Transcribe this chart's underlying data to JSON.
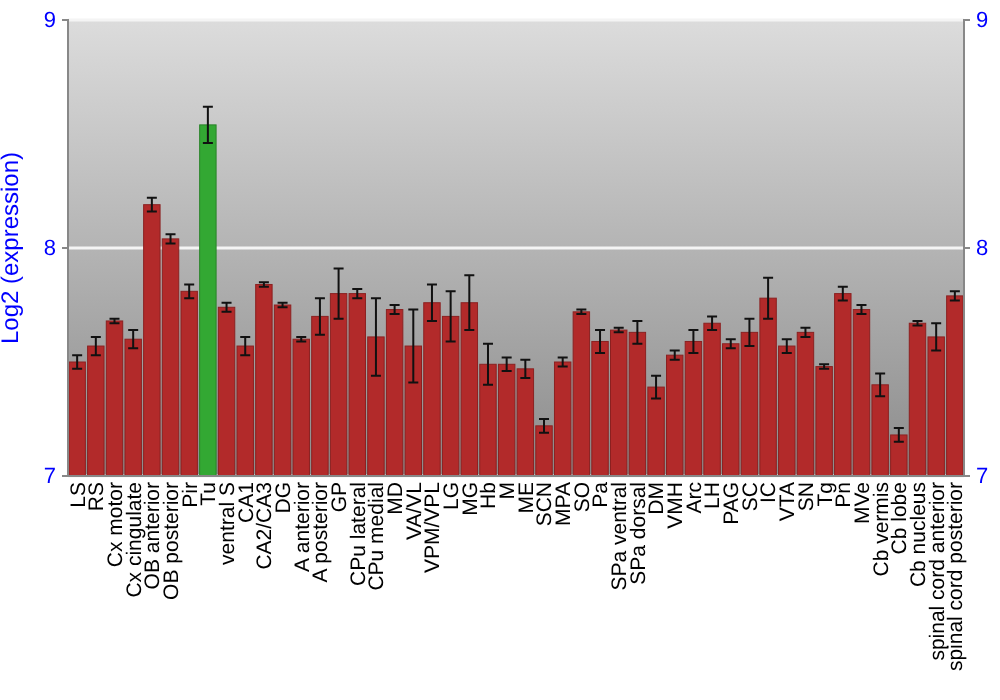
{
  "chart_data": {
    "type": "bar",
    "ylabel": "Log2 (expression)",
    "categories": [
      "LS",
      "RS",
      "Cx motor",
      "Cx cingulate",
      "OB anterior",
      "OB posterior",
      "Pir",
      "Tu",
      "ventral S",
      "CA1",
      "CA2/CA3",
      "DG",
      "A anterior",
      "A posterior",
      "GP",
      "CPu lateral",
      "CPu medial",
      "MD",
      "VA/VL",
      "VPM/VPL",
      "LG",
      "MG",
      "Hb",
      "M",
      "ME",
      "SCN",
      "MPA",
      "SO",
      "Pa",
      "SPa ventral",
      "SPa dorsal",
      "DM",
      "VMH",
      "Arc",
      "LH",
      "PAG",
      "SC",
      "IC",
      "VTA",
      "SN",
      "Tg",
      "Pn",
      "MVe",
      "Cb vermis",
      "Cb lobe",
      "Cb nucleus",
      "spinal cord anterior",
      "spinal cord posterior"
    ],
    "values": [
      7.5,
      7.57,
      7.68,
      7.6,
      8.19,
      8.04,
      7.81,
      8.54,
      7.74,
      7.57,
      7.84,
      7.75,
      7.6,
      7.7,
      7.8,
      7.8,
      7.61,
      7.73,
      7.57,
      7.76,
      7.7,
      7.76,
      7.49,
      7.49,
      7.47,
      7.22,
      7.5,
      7.72,
      7.59,
      7.64,
      7.63,
      7.39,
      7.53,
      7.59,
      7.67,
      7.58,
      7.63,
      7.78,
      7.57,
      7.63,
      7.48,
      7.8,
      7.73,
      7.4,
      7.18,
      7.67,
      7.61,
      7.79
    ],
    "errors": [
      0.03,
      0.04,
      0.01,
      0.04,
      0.03,
      0.02,
      0.03,
      0.08,
      0.02,
      0.04,
      0.01,
      0.01,
      0.01,
      0.08,
      0.11,
      0.02,
      0.17,
      0.02,
      0.16,
      0.08,
      0.11,
      0.12,
      0.09,
      0.03,
      0.04,
      0.03,
      0.02,
      0.01,
      0.05,
      0.01,
      0.05,
      0.05,
      0.02,
      0.05,
      0.03,
      0.02,
      0.06,
      0.09,
      0.03,
      0.02,
      0.01,
      0.03,
      0.02,
      0.05,
      0.03,
      0.01,
      0.06,
      0.02
    ],
    "colors": [
      "#b22a2a",
      "#b22a2a",
      "#b22a2a",
      "#b22a2a",
      "#b22a2a",
      "#b22a2a",
      "#b22a2a",
      "#33a833",
      "#b22a2a",
      "#b22a2a",
      "#b22a2a",
      "#b22a2a",
      "#b22a2a",
      "#b22a2a",
      "#b22a2a",
      "#b22a2a",
      "#b22a2a",
      "#b22a2a",
      "#b22a2a",
      "#b22a2a",
      "#b22a2a",
      "#b22a2a",
      "#b22a2a",
      "#b22a2a",
      "#b22a2a",
      "#b22a2a",
      "#b22a2a",
      "#b22a2a",
      "#b22a2a",
      "#b22a2a",
      "#b22a2a",
      "#b22a2a",
      "#b22a2a",
      "#b22a2a",
      "#b22a2a",
      "#b22a2a",
      "#b22a2a",
      "#b22a2a",
      "#b22a2a",
      "#b22a2a",
      "#b22a2a",
      "#b22a2a",
      "#b22a2a",
      "#b22a2a",
      "#b22a2a",
      "#b22a2a",
      "#b22a2a",
      "#b22a2a"
    ],
    "ylim": [
      7,
      9
    ],
    "yticks": [
      7,
      8,
      9
    ],
    "y2lim": [
      7,
      9
    ],
    "y2ticks": [
      7,
      8,
      9
    ],
    "grid": "y"
  }
}
